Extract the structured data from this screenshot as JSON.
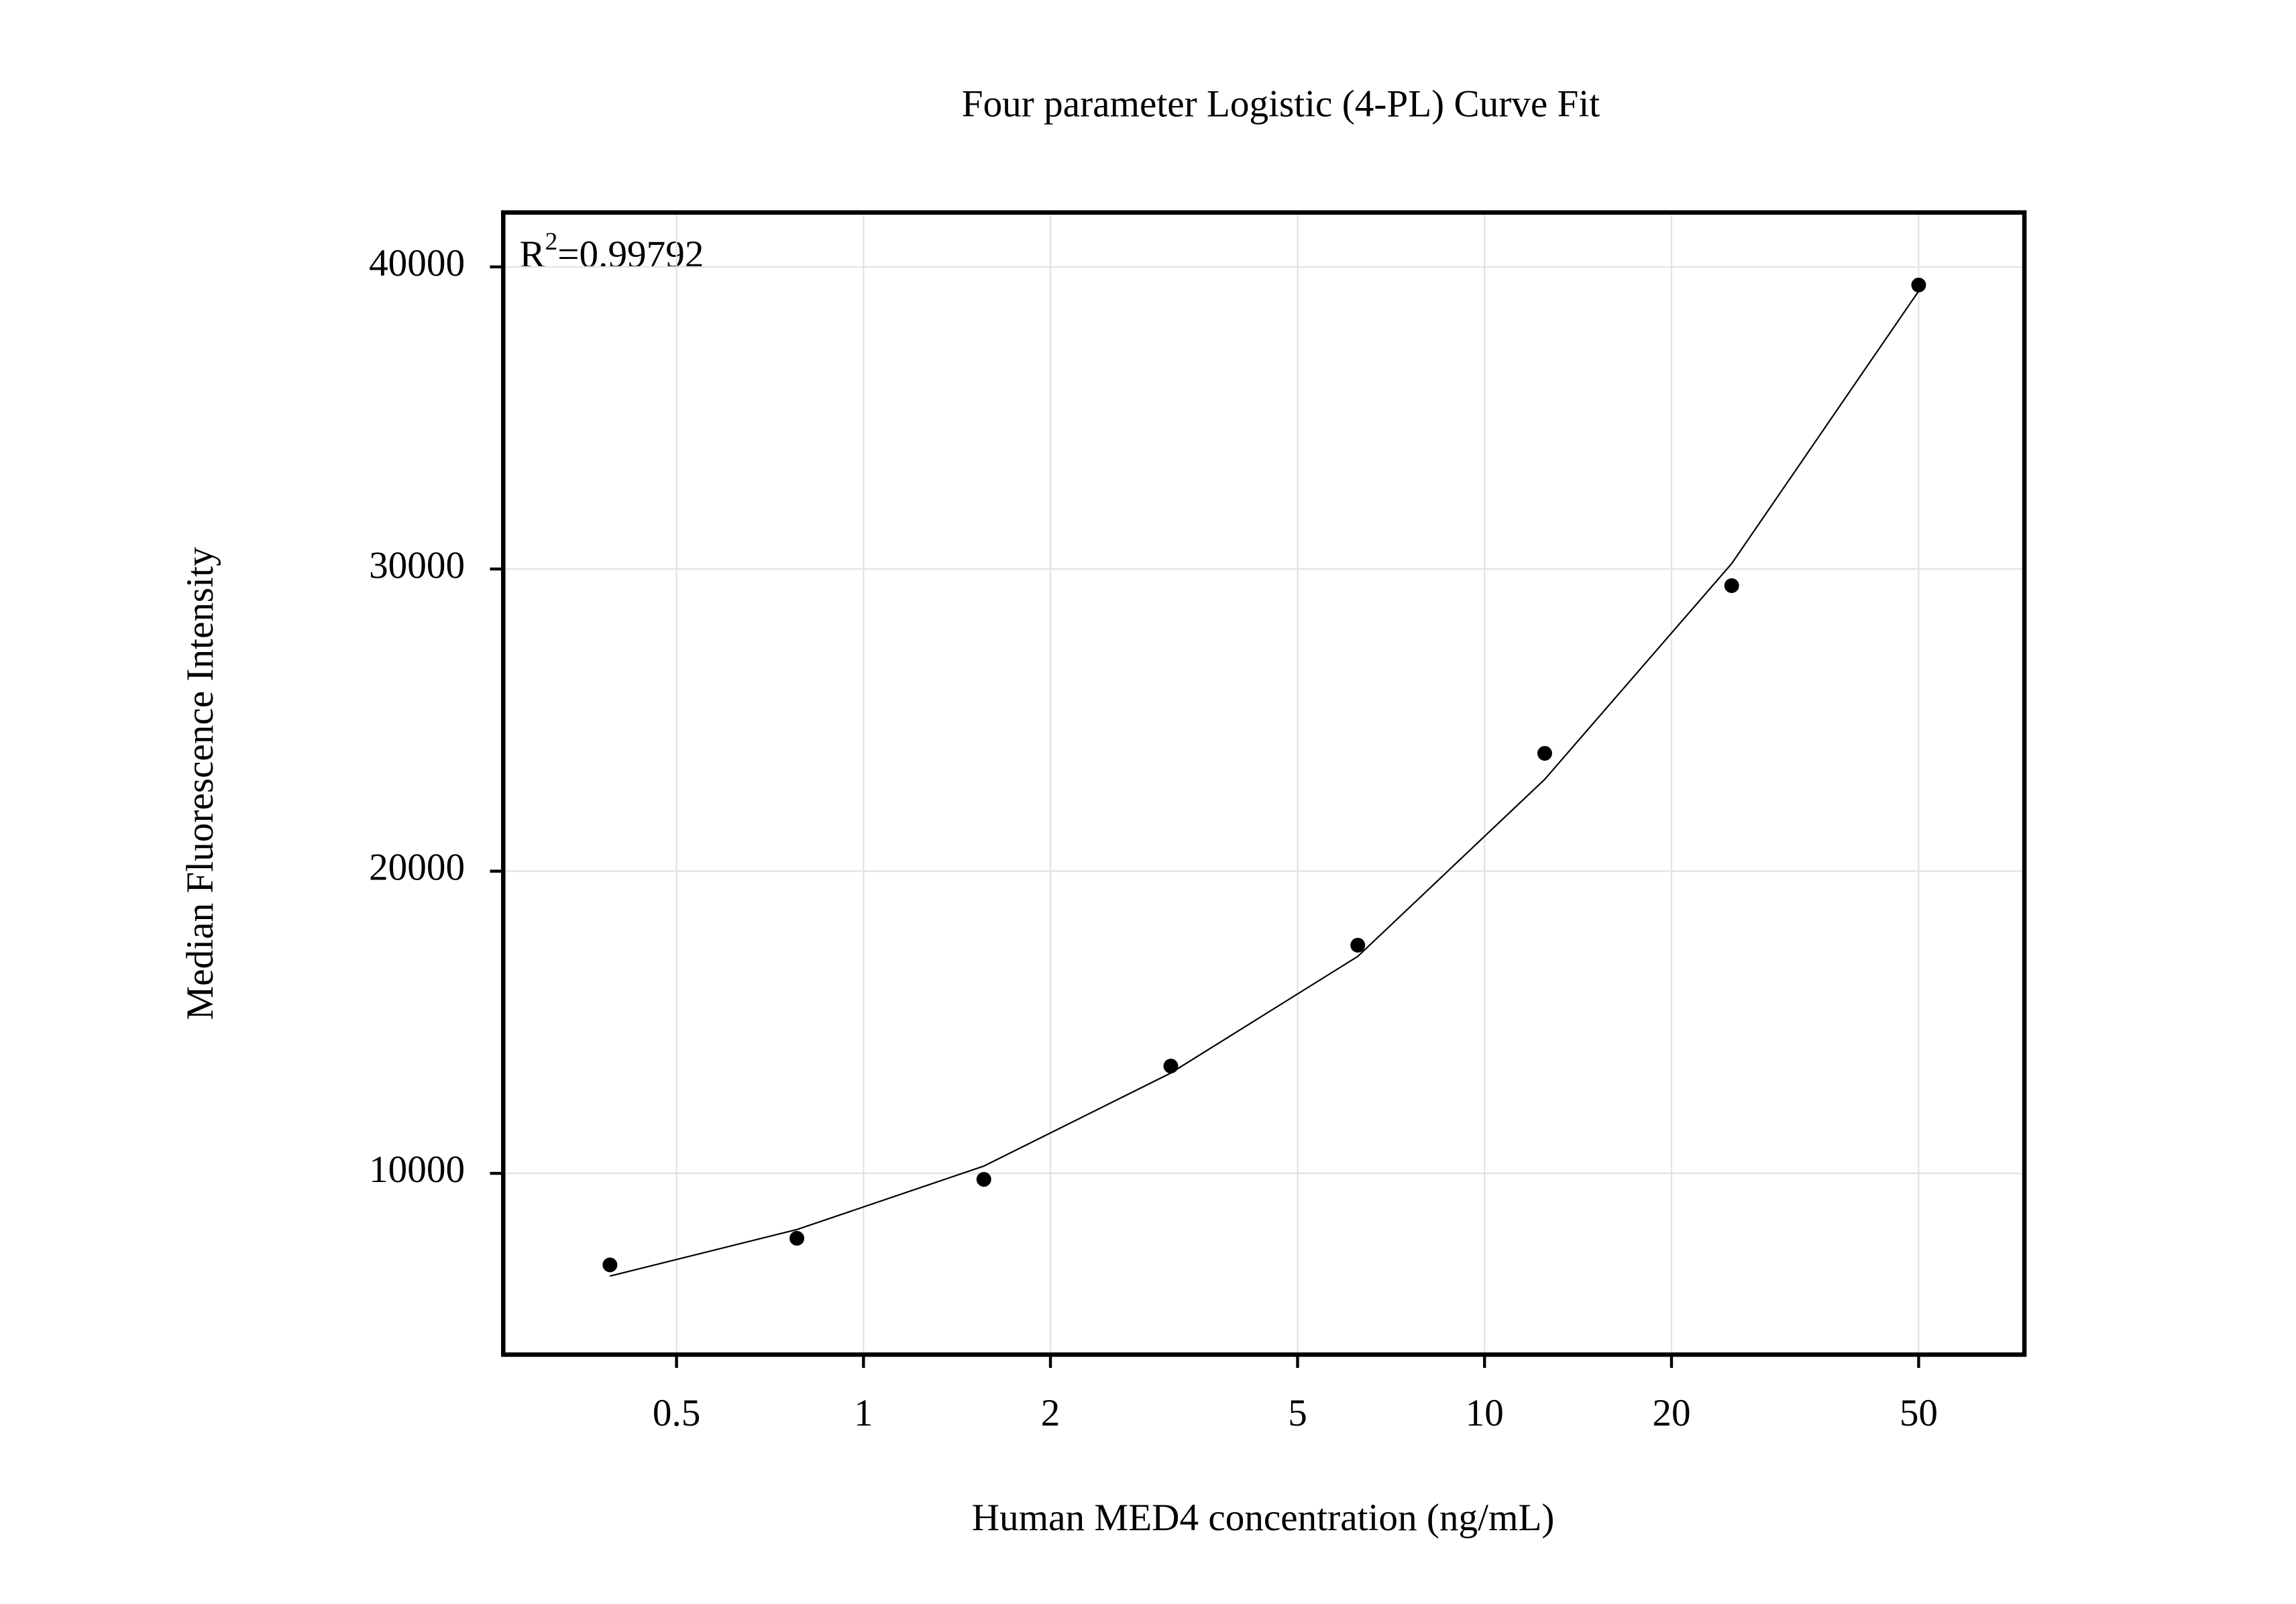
{
  "chart_data": {
    "type": "scatter",
    "title": "Four parameter Logistic (4-PL) Curve Fit",
    "x_label": "Human MED4 concentration (ng/mL)",
    "y_label": "Median Fluorescence Intensity",
    "annotation": {
      "base": "R",
      "sup": "2",
      "text": "=0.99792"
    },
    "x": [
      0.390625,
      0.78125,
      1.5625,
      3.125,
      6.25,
      12.5,
      25,
      50
    ],
    "values": [
      6970,
      7850,
      9800,
      13550,
      17550,
      23900,
      29450,
      39400
    ],
    "color": "#000000",
    "fit": {
      "x": [
        0.390625,
        0.78125,
        1.5625,
        3.125,
        6.25,
        12.5,
        25,
        50
      ],
      "values": [
        6600,
        8140,
        10240,
        13320,
        17180,
        23040,
        30180,
        39200
      ],
      "color": "#000000"
    },
    "x_log": true,
    "xlim": [
      0.263,
      74
    ],
    "ylim": [
      4000,
      41800
    ],
    "xticks": [
      0.5,
      1,
      2,
      5,
      10,
      20,
      50
    ],
    "yticks": [
      10000,
      20000,
      30000,
      40000
    ],
    "grid": true
  }
}
